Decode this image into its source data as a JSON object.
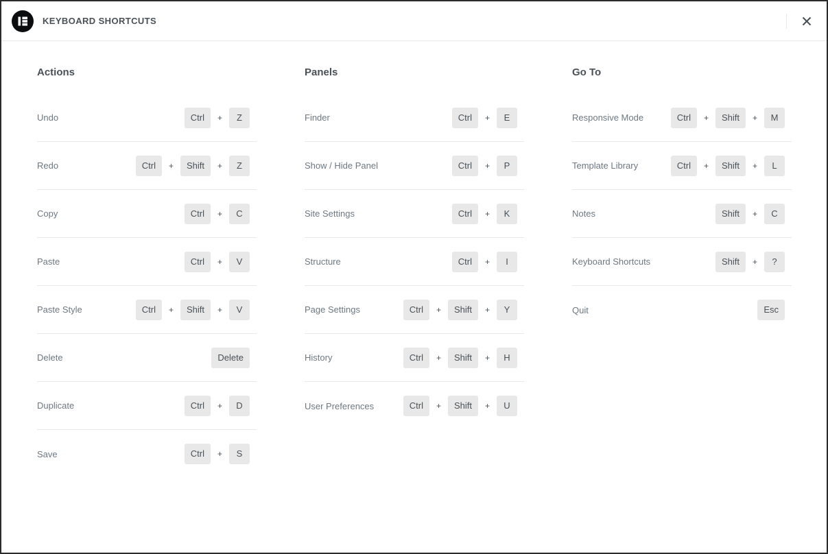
{
  "header": {
    "title": "KEYBOARD SHORTCUTS",
    "logo": "elementor-logo",
    "close_icon": "close-x"
  },
  "plus_separator": "+",
  "colors": {
    "window_border": "#2b2b2b",
    "divider": "#e6e9ec",
    "heading_text": "#495157",
    "label_text": "#6d7882",
    "key_background": "#e8e8e8",
    "key_text": "#495157",
    "logo_background": "#0c0d0e"
  },
  "columns": [
    {
      "heading": "Actions",
      "rows": [
        {
          "label": "Undo",
          "keys": [
            "Ctrl",
            "Z"
          ]
        },
        {
          "label": "Redo",
          "keys": [
            "Ctrl",
            "Shift",
            "Z"
          ]
        },
        {
          "label": "Copy",
          "keys": [
            "Ctrl",
            "C"
          ]
        },
        {
          "label": "Paste",
          "keys": [
            "Ctrl",
            "V"
          ]
        },
        {
          "label": "Paste Style",
          "keys": [
            "Ctrl",
            "Shift",
            "V"
          ]
        },
        {
          "label": "Delete",
          "keys": [
            "Delete"
          ]
        },
        {
          "label": "Duplicate",
          "keys": [
            "Ctrl",
            "D"
          ]
        },
        {
          "label": "Save",
          "keys": [
            "Ctrl",
            "S"
          ]
        }
      ]
    },
    {
      "heading": "Panels",
      "rows": [
        {
          "label": "Finder",
          "keys": [
            "Ctrl",
            "E"
          ]
        },
        {
          "label": "Show / Hide Panel",
          "keys": [
            "Ctrl",
            "P"
          ]
        },
        {
          "label": "Site Settings",
          "keys": [
            "Ctrl",
            "K"
          ]
        },
        {
          "label": "Structure",
          "keys": [
            "Ctrl",
            "I"
          ]
        },
        {
          "label": "Page Settings",
          "keys": [
            "Ctrl",
            "Shift",
            "Y"
          ]
        },
        {
          "label": "History",
          "keys": [
            "Ctrl",
            "Shift",
            "H"
          ]
        },
        {
          "label": "User Preferences",
          "keys": [
            "Ctrl",
            "Shift",
            "U"
          ]
        }
      ]
    },
    {
      "heading": "Go To",
      "rows": [
        {
          "label": "Responsive Mode",
          "keys": [
            "Ctrl",
            "Shift",
            "M"
          ]
        },
        {
          "label": "Template Library",
          "keys": [
            "Ctrl",
            "Shift",
            "L"
          ]
        },
        {
          "label": "Notes",
          "keys": [
            "Shift",
            "C"
          ]
        },
        {
          "label": "Keyboard Shortcuts",
          "keys": [
            "Shift",
            "?"
          ]
        },
        {
          "label": "Quit",
          "keys": [
            "Esc"
          ]
        }
      ]
    }
  ]
}
